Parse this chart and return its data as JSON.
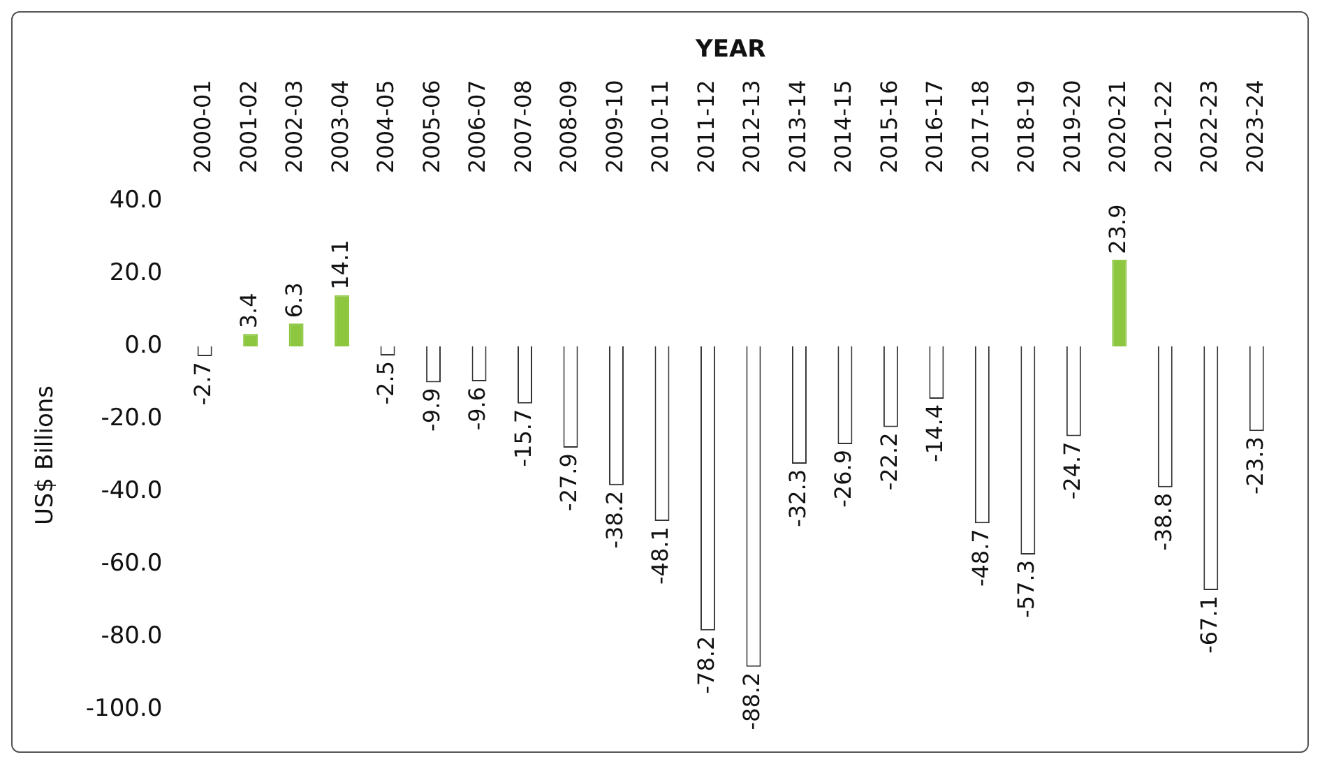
{
  "chart_data": {
    "type": "bar",
    "xlabel": "YEAR",
    "ylabel": "US$ Billions",
    "categories": [
      "2000-01",
      "2001-02",
      "2002-03",
      "2003-04",
      "2004-05",
      "2005-06",
      "2006-07",
      "2007-08",
      "2008-09",
      "2009-10",
      "2010-11",
      "2011-12",
      "2012-13",
      "2013-14",
      "2014-15",
      "2015-16",
      "2016-17",
      "2017-18",
      "2018-19",
      "2019-20",
      "2020-21",
      "2021-22",
      "2022-23",
      "2023-24"
    ],
    "values": [
      -2.7,
      3.4,
      6.3,
      14.1,
      -2.5,
      -9.9,
      -9.6,
      -15.7,
      -27.9,
      -38.2,
      -48.1,
      -78.2,
      -88.2,
      -32.3,
      -26.9,
      -22.2,
      -14.4,
      -48.7,
      -57.3,
      -24.7,
      23.9,
      -38.8,
      -67.1,
      -23.3
    ],
    "colors": [
      "#ffffff",
      "#8dc63f",
      "#8dc63f",
      "#8dc63f",
      "#ffffff",
      "#ffffff",
      "#ffffff",
      "#ffffff",
      "#ffffff",
      "#ffffff",
      "#ffffff",
      "#ffffff",
      "#ffffff",
      "#ffffff",
      "#ffffff",
      "#ffffff",
      "#ffffff",
      "#ffffff",
      "#ffffff",
      "#ffffff",
      "#8dc63f",
      "#ffffff",
      "#ffffff",
      "#ffffff"
    ],
    "ylim": [
      -100,
      40
    ],
    "yticks": [
      {
        "value": 40,
        "label": "40.0"
      },
      {
        "value": 20,
        "label": "20.0"
      },
      {
        "value": 0,
        "label": "0.0"
      },
      {
        "value": -20,
        "label": "-20.0"
      },
      {
        "value": -40,
        "label": "-40.0"
      },
      {
        "value": -60,
        "label": "-60.0"
      },
      {
        "value": -80,
        "label": "-80.0"
      },
      {
        "value": -100,
        "label": "-100.0"
      }
    ],
    "data_labels": true,
    "grid": false,
    "legend": false
  }
}
